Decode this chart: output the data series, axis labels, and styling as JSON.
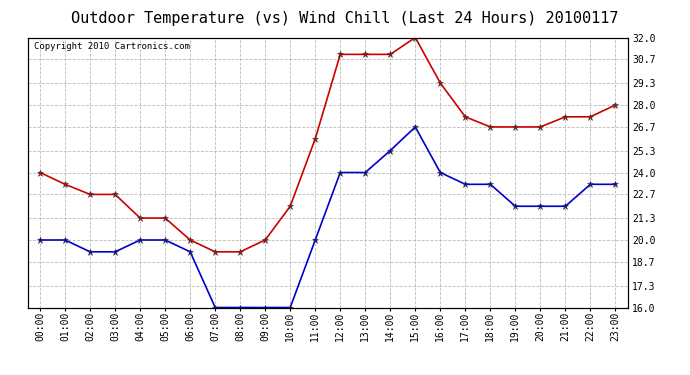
{
  "title": "Outdoor Temperature (vs) Wind Chill (Last 24 Hours) 20100117",
  "copyright_text": "Copyright 2010 Cartronics.com",
  "x_labels": [
    "00:00",
    "01:00",
    "02:00",
    "03:00",
    "04:00",
    "05:00",
    "06:00",
    "07:00",
    "08:00",
    "09:00",
    "10:00",
    "11:00",
    "12:00",
    "13:00",
    "14:00",
    "15:00",
    "16:00",
    "17:00",
    "18:00",
    "19:00",
    "20:00",
    "21:00",
    "22:00",
    "23:00"
  ],
  "red_data": [
    24.0,
    23.3,
    22.7,
    22.7,
    21.3,
    21.3,
    20.0,
    19.3,
    19.3,
    20.0,
    22.0,
    26.0,
    31.0,
    31.0,
    31.0,
    32.0,
    29.3,
    27.3,
    26.7,
    26.7,
    26.7,
    27.3,
    27.3,
    28.0
  ],
  "blue_data": [
    20.0,
    20.0,
    19.3,
    19.3,
    20.0,
    20.0,
    19.3,
    16.0,
    16.0,
    16.0,
    16.0,
    20.0,
    24.0,
    24.0,
    25.3,
    26.7,
    24.0,
    23.3,
    23.3,
    22.0,
    22.0,
    22.0,
    23.3,
    23.3
  ],
  "red_color": "#cc0000",
  "blue_color": "#0000cc",
  "ylim_min": 16.0,
  "ylim_max": 32.0,
  "yticks": [
    16.0,
    17.3,
    18.7,
    20.0,
    21.3,
    22.7,
    24.0,
    25.3,
    26.7,
    28.0,
    29.3,
    30.7,
    32.0
  ],
  "bg_color": "#ffffff",
  "grid_color": "#bbbbbb",
  "title_fontsize": 11,
  "tick_fontsize": 7,
  "copyright_fontsize": 6.5
}
